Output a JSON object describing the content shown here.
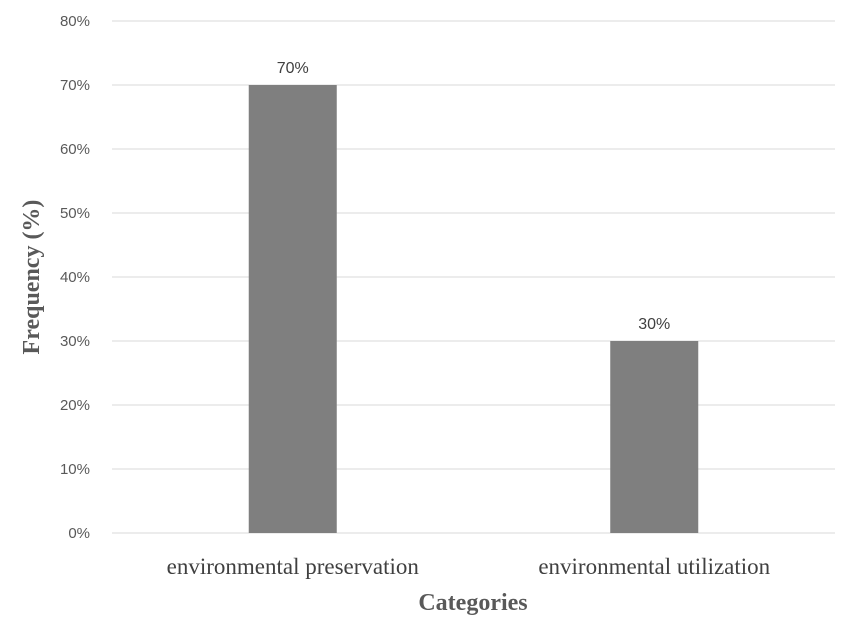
{
  "chart_data": {
    "type": "bar",
    "title": "",
    "xlabel": "Categories",
    "ylabel": "Frequency (%)",
    "categories": [
      "environmental preservation",
      "environmental utilization"
    ],
    "series": [
      {
        "values": [
          70,
          30
        ],
        "color": "#7f7f7f"
      }
    ],
    "data_labels": [
      "70%",
      "30%"
    ],
    "ylim": [
      0,
      80
    ],
    "yticks": [
      0,
      10,
      20,
      30,
      40,
      50,
      60,
      70,
      80
    ],
    "ytick_labels": [
      "0%",
      "10%",
      "20%",
      "30%",
      "40%",
      "50%",
      "60%",
      "70%",
      "80%"
    ],
    "grid": true,
    "legend": "none",
    "gridline_color": "#d9d9d9"
  }
}
